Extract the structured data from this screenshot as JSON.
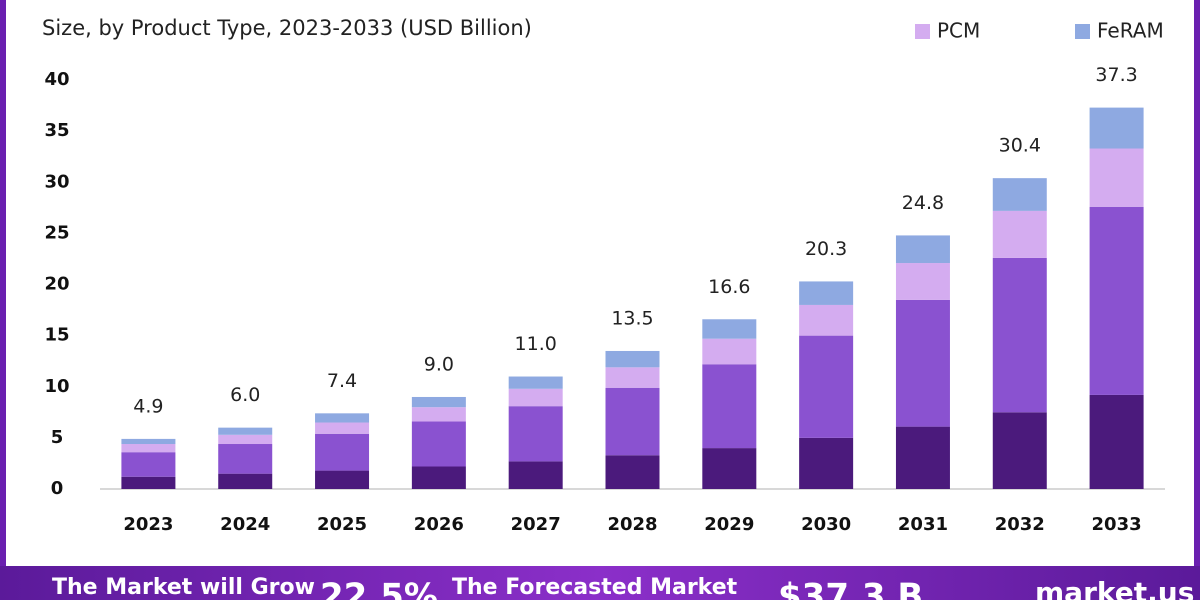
{
  "chart_data": {
    "type": "stacked-bar",
    "subtitle": "Size, by Product Type, 2023-2033 (USD Billion)",
    "categories": [
      "2023",
      "2024",
      "2025",
      "2026",
      "2027",
      "2028",
      "2029",
      "2030",
      "2031",
      "2032",
      "2033"
    ],
    "series": [
      {
        "color": "#4b1a7c",
        "values": [
          1.2,
          1.5,
          1.8,
          2.2,
          2.7,
          3.3,
          4.0,
          5.0,
          6.1,
          7.5,
          9.2
        ]
      },
      {
        "color": "#8a52d0",
        "values": [
          2.4,
          2.9,
          3.6,
          4.4,
          5.4,
          6.6,
          8.2,
          10.0,
          12.4,
          15.1,
          18.4
        ]
      },
      {
        "name": "PCM",
        "color": "#d4acf0",
        "values": [
          0.8,
          0.9,
          1.1,
          1.4,
          1.7,
          2.0,
          2.5,
          3.0,
          3.6,
          4.6,
          5.7
        ]
      },
      {
        "name": "FeRAM",
        "color": "#8ea9e1",
        "values": [
          0.5,
          0.7,
          0.9,
          1.0,
          1.2,
          1.6,
          1.9,
          2.3,
          2.7,
          3.2,
          4.0
        ]
      }
    ],
    "totals": [
      4.9,
      6.0,
      7.4,
      9.0,
      11.0,
      13.5,
      16.6,
      20.3,
      24.8,
      30.4,
      37.3
    ],
    "total_labels": [
      "4.9",
      "6.0",
      "7.4",
      "9.0",
      "11.0",
      "13.5",
      "16.6",
      "20.3",
      "24.8",
      "30.4",
      "37.3"
    ],
    "ylim": [
      0,
      40
    ],
    "yticks": [
      0,
      5,
      10,
      15,
      20,
      25,
      30,
      35,
      40
    ],
    "banner": {
      "grow_text": "The Market will Grow",
      "cagr": "22.5%",
      "forecast_text": "The Forecasted Market",
      "forecast_value": "$37.3 B",
      "brand": "market.us"
    }
  }
}
